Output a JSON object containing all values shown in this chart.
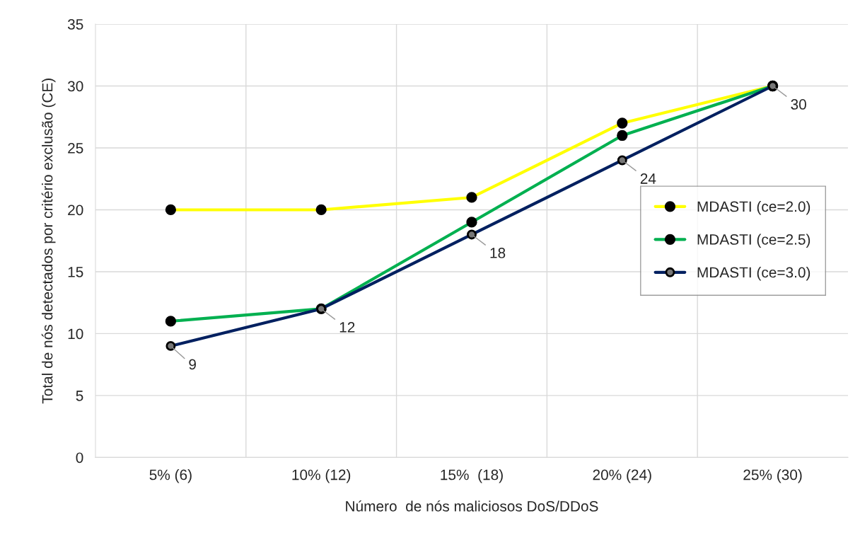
{
  "chart_data": {
    "type": "line",
    "xlabel": "Número  de nós maliciosos DoS/DDoS",
    "ylabel": "Total de nós detectados por critério exclusão (CE)",
    "categories": [
      "5% (6)",
      "10% (12)",
      "15%  (18)",
      "20% (24)",
      "25% (30)"
    ],
    "series": [
      {
        "name": "MDASTI (ce=2.0)",
        "color": "#ffff00",
        "values": [
          20,
          20,
          21,
          27,
          30
        ]
      },
      {
        "name": "MDASTI (ce=2.5)",
        "color": "#00b050",
        "values": [
          11,
          12,
          19,
          26,
          30
        ]
      },
      {
        "name": "MDASTI (ce=3.0)",
        "color": "#002060",
        "values": [
          9,
          12,
          18,
          24,
          30
        ],
        "value_labels": [
          "9",
          "12",
          "18",
          "24",
          "30"
        ]
      }
    ],
    "ylim": [
      0,
      35
    ],
    "yticks": [
      0,
      5,
      10,
      15,
      20,
      25,
      30,
      35
    ],
    "grid": true,
    "legend": "right",
    "marker": "circle",
    "line_style": "solid"
  }
}
